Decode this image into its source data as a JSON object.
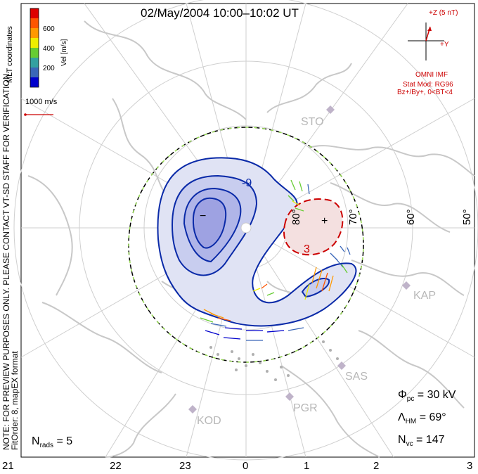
{
  "title": "02/May/2004  10:00–10:02 UT",
  "notes": {
    "line1": "NOTE: FOR PREVIEW PURPOSES ONLY. PLEASE CONTACT VT-SD STAFF FOR VERIFICATION.",
    "line2": "FitOrder: 8, mapEX format"
  },
  "coord_label": "MLT coordinates",
  "colorbar": {
    "title": "Vel [m/s]",
    "ticks": [
      "600",
      "400",
      "200"
    ],
    "colors": [
      "#0000cc",
      "#3a66b8",
      "#33a0a0",
      "#66cc33",
      "#eeee00",
      "#ff9900",
      "#ff5500",
      "#dd0000"
    ]
  },
  "ref_vector": {
    "label": "1000 m/s",
    "color": "#cc0000"
  },
  "imf": {
    "z_label": "+Z (5 nT)",
    "y_label": "+Y",
    "source": "OMNI IMF",
    "model": "Stat Mod: RG96",
    "condition": "Bz+/By+, 0<BT<4",
    "color": "#cc0000"
  },
  "stats": {
    "phi_label": "Φ",
    "phi_sub": "pc",
    "phi_value": " = 30 kV",
    "lambda_label": "Λ",
    "lambda_sub": "HM",
    "lambda_value": " = 69°",
    "nvc_label": "N",
    "nvc_sub": "vc",
    "nvc_value": " = 147"
  },
  "nrads": {
    "label": "N",
    "sub": "rads",
    "value": " = 5"
  },
  "mlt_labels": [
    "21",
    "22",
    "23",
    "0",
    "1",
    "2",
    "3"
  ],
  "lat_labels": [
    "80°",
    "70°",
    "60°",
    "50°"
  ],
  "stations": [
    "STO",
    "KAP",
    "SAS",
    "PGR",
    "KOD"
  ],
  "contours": {
    "negative_label": "-9",
    "positive_label": "3",
    "min_symbol": "−",
    "max_symbol": "+",
    "negative_color": "#0a2aa8",
    "positive_color": "#cc0000"
  }
}
